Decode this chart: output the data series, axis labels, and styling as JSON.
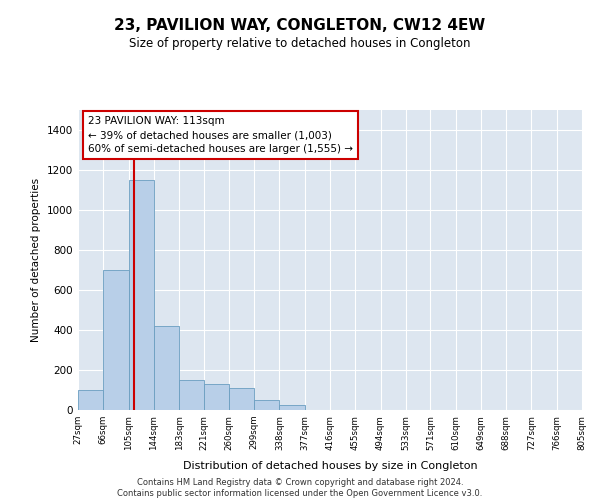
{
  "title": "23, PAVILION WAY, CONGLETON, CW12 4EW",
  "subtitle": "Size of property relative to detached houses in Congleton",
  "xlabel": "Distribution of detached houses by size in Congleton",
  "ylabel": "Number of detached properties",
  "bins": [
    27,
    66,
    105,
    144,
    183,
    221,
    260,
    299,
    338,
    377,
    416,
    455,
    494,
    533,
    571,
    610,
    649,
    688,
    727,
    766,
    805
  ],
  "bar_heights": [
    100,
    700,
    1150,
    420,
    150,
    130,
    110,
    50,
    25,
    0,
    0,
    0,
    0,
    0,
    0,
    0,
    0,
    0,
    0,
    0
  ],
  "bar_color": "#b8cfe8",
  "bar_edge_color": "#6a9ec0",
  "ylim": [
    0,
    1500
  ],
  "yticks": [
    0,
    200,
    400,
    600,
    800,
    1000,
    1200,
    1400
  ],
  "property_size": 113,
  "red_line_color": "#cc0000",
  "annotation_text": "23 PAVILION WAY: 113sqm\n← 39% of detached houses are smaller (1,003)\n60% of semi-detached houses are larger (1,555) →",
  "annotation_box_color": "#ffffff",
  "annotation_box_edge": "#cc0000",
  "background_color": "#dde6f0",
  "grid_color": "#ffffff",
  "footer_line1": "Contains HM Land Registry data © Crown copyright and database right 2024.",
  "footer_line2": "Contains public sector information licensed under the Open Government Licence v3.0."
}
